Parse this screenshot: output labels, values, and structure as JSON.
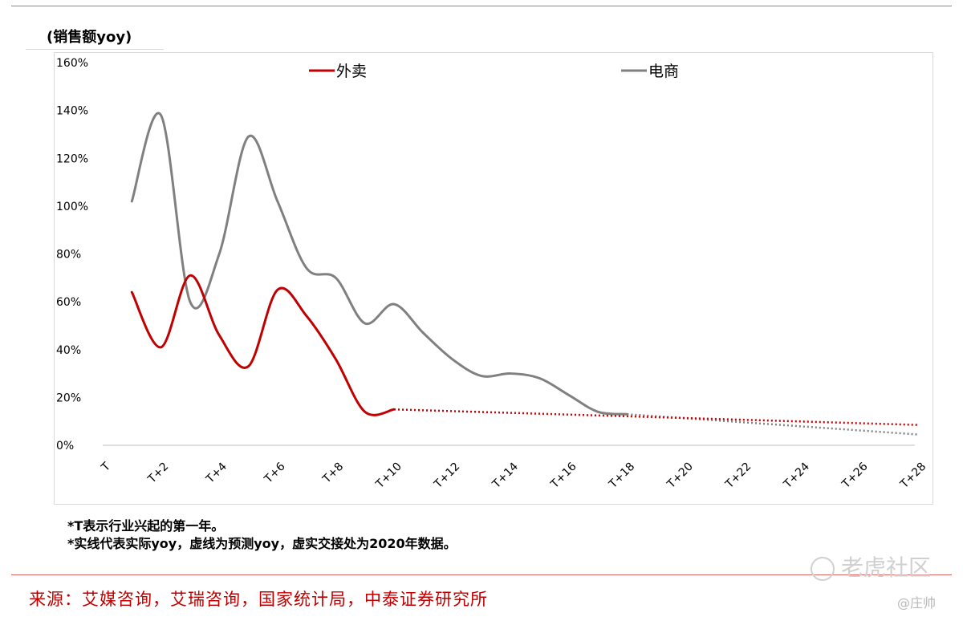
{
  "page": {
    "chart_label": "(销售额yoy)",
    "notes": [
      "*T表示行业兴起的第一年。",
      "*实线代表实际yoy，虚线为预测yoy，虚实交接处为2020年数据。"
    ],
    "source": "来源：艾媒咨询，艾瑞咨询，国家统计局，中泰证券研究所",
    "watermark": "老虎社区",
    "author": "@庄帅"
  },
  "chart_data": {
    "type": "line",
    "title": "",
    "xlabel": "",
    "ylabel": "",
    "ylim": [
      0,
      160
    ],
    "yticks": [
      "0%",
      "20%",
      "40%",
      "60%",
      "80%",
      "100%",
      "120%",
      "140%",
      "160%"
    ],
    "x_tick_labels": [
      "T",
      "T+2",
      "T+4",
      "T+6",
      "T+8",
      "T+10",
      "T+12",
      "T+14",
      "T+16",
      "T+18",
      "T+20",
      "T+22",
      "T+24",
      "T+26",
      "T+28"
    ],
    "grid": false,
    "legend_position": "top",
    "series": [
      {
        "name": "外卖",
        "color": "#c00000",
        "actual": [
          [
            1,
            64
          ],
          [
            2,
            41
          ],
          [
            3,
            71
          ],
          [
            4,
            46
          ],
          [
            5,
            33
          ],
          [
            6,
            65
          ],
          [
            7,
            54
          ],
          [
            8,
            36
          ],
          [
            9,
            14
          ],
          [
            10,
            15
          ]
        ],
        "forecast": [
          [
            10,
            15
          ],
          [
            28,
            8.5
          ]
        ]
      },
      {
        "name": "电商",
        "color": "#808080",
        "actual": [
          [
            1,
            102
          ],
          [
            2,
            138
          ],
          [
            3,
            60
          ],
          [
            4,
            80
          ],
          [
            5,
            129
          ],
          [
            6,
            102
          ],
          [
            7,
            74
          ],
          [
            8,
            70
          ],
          [
            9,
            51
          ],
          [
            10,
            59
          ],
          [
            11,
            47
          ],
          [
            12,
            36
          ],
          [
            13,
            29
          ],
          [
            14,
            30
          ],
          [
            15,
            28
          ],
          [
            16,
            21
          ],
          [
            17,
            14
          ],
          [
            18,
            13
          ]
        ],
        "forecast": [
          [
            18,
            13
          ],
          [
            28,
            4.5
          ]
        ]
      }
    ]
  }
}
